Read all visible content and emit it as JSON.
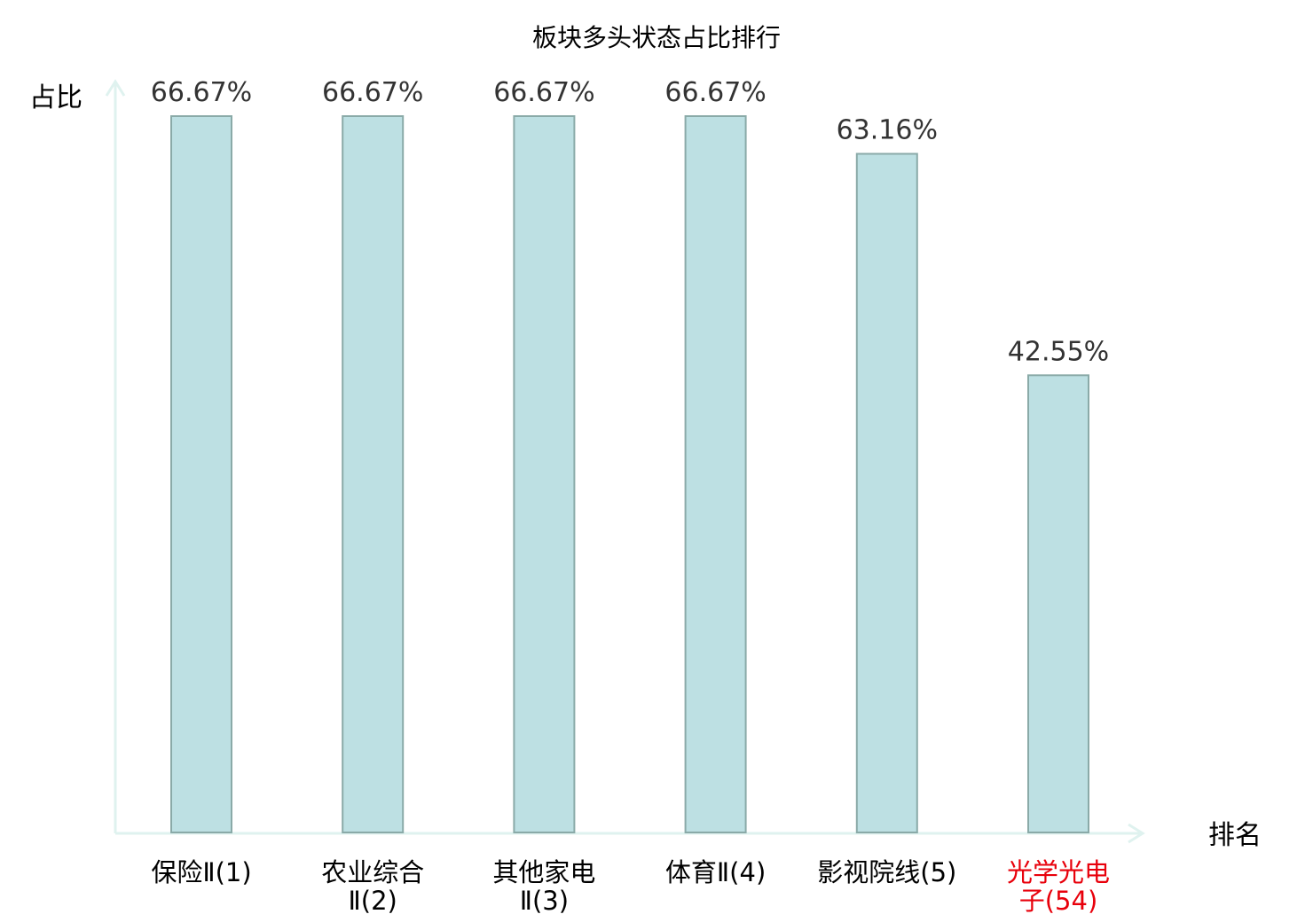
{
  "chart_data": {
    "type": "bar",
    "title": "板块多头状态占比排行",
    "ylabel": "占比",
    "xlabel": "排名",
    "categories": [
      [
        "保险Ⅱ(1)"
      ],
      [
        "农业综合",
        "Ⅱ(2)"
      ],
      [
        "其他家电",
        "Ⅱ(3)"
      ],
      [
        "体育Ⅱ(4)"
      ],
      [
        "影视院线(5)"
      ],
      [
        "光学光电",
        "子(54)"
      ]
    ],
    "values": [
      66.67,
      66.67,
      66.67,
      66.67,
      63.16,
      42.55
    ],
    "value_labels": [
      "66.67%",
      "66.67%",
      "66.67%",
      "66.67%",
      "63.16%",
      "42.55%"
    ],
    "highlight_index": 5,
    "ylim": [
      0,
      66.67
    ],
    "grid": false,
    "colors": {
      "bar_fill": "#bde0e3",
      "bar_stroke": "#8aaaa8",
      "axis": "#dff2ef",
      "text": "#000000",
      "value_text": "#333333",
      "highlight": "#e8000b"
    }
  }
}
